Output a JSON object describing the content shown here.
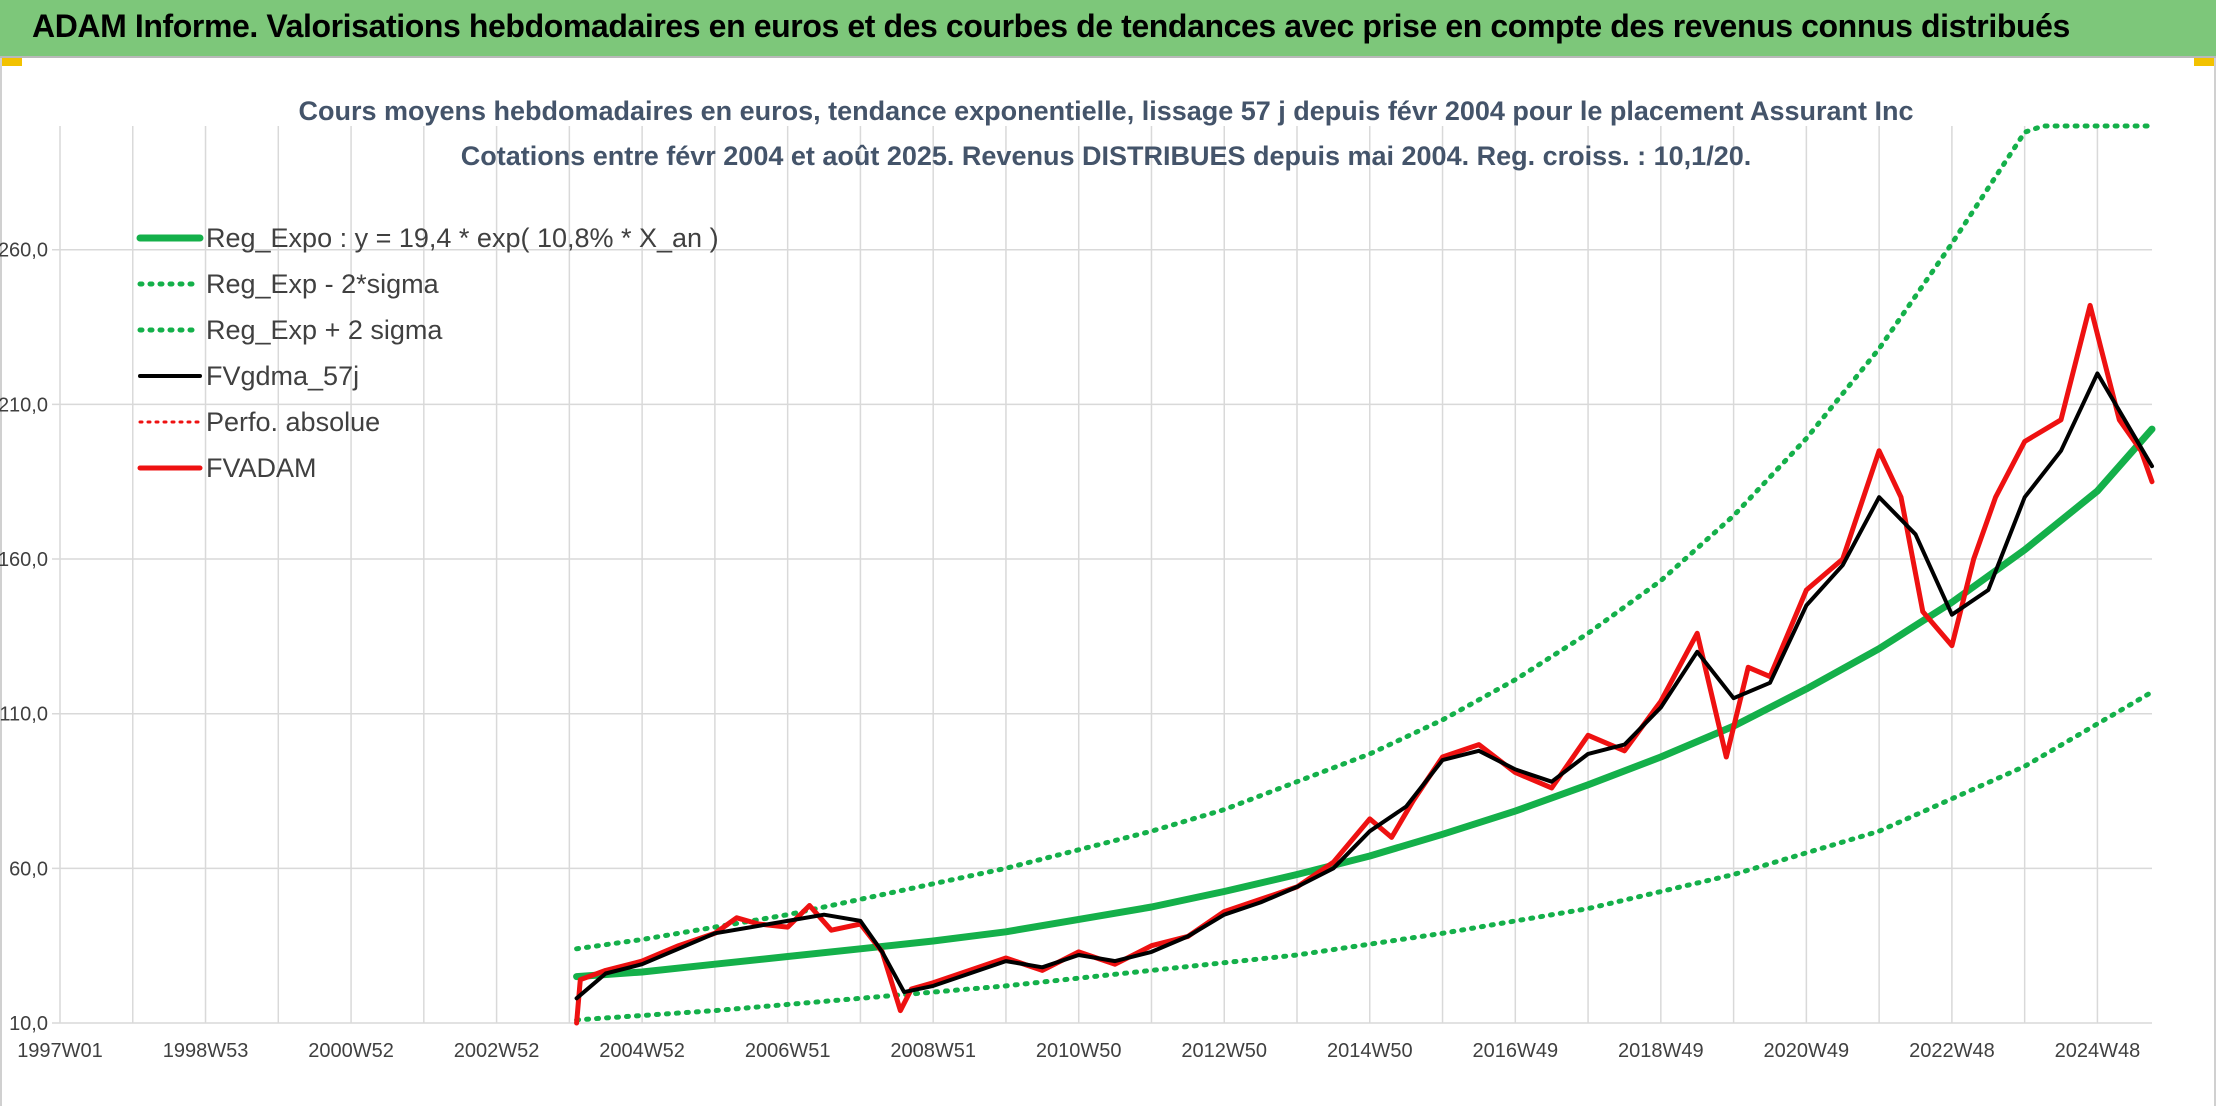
{
  "banner": {
    "title": "ADAM Informe. Valorisations hebdomadaires en euros et des courbes de tendances avec prise en compte des revenus connus distribués"
  },
  "colors": {
    "banner_bg": "#7dc77a",
    "trend_green": "#14b04a",
    "price_red": "#ee1111",
    "smooth_black": "#000000",
    "grid": "#d9d9d9",
    "title_text": "#44546a",
    "accent_yellow": "#f2c200"
  },
  "chart_data": {
    "type": "line",
    "title": "Cours moyens hebdomadaires en euros, tendance exponentielle, lissage 57 j depuis févr 2004 pour le placement Assurant Inc",
    "subtitle": "Cotations entre févr 2004 et août 2025. Revenus DISTRIBUES depuis mai 2004. Reg. croiss. : 10,1/20.",
    "x_tick_labels": [
      "1997W01",
      "1998W53",
      "2000W52",
      "2002W52",
      "2004W52",
      "2006W51",
      "2008W51",
      "2010W50",
      "2012W50",
      "2014W50",
      "2016W49",
      "2018W49",
      "2020W49",
      "2022W48",
      "2024W48"
    ],
    "y_tick_labels": [
      "10,0",
      "60,0",
      "110,0",
      "160,0",
      "210,0",
      "260,0"
    ],
    "ylim": [
      10,
      300
    ],
    "xlim": [
      1997.0,
      2025.75
    ],
    "grid": true,
    "legend_position": "top-left",
    "legend": [
      {
        "key": "reg_expo",
        "label": "Reg_Expo : y = 19,4 * exp( 10,8% *  X_an )",
        "style": "solid",
        "color": "#14b04a"
      },
      {
        "key": "reg_low",
        "label": "Reg_Exp - 2*sigma",
        "style": "dotted",
        "color": "#14b04a"
      },
      {
        "key": "reg_high",
        "label": "Reg_Exp + 2 sigma",
        "style": "dotted",
        "color": "#14b04a"
      },
      {
        "key": "fvgdma",
        "label": "FVgdma_57j",
        "style": "solid",
        "color": "#000000"
      },
      {
        "key": "perfo",
        "label": "Perfo. absolue",
        "style": "dotted",
        "color": "#ee1111"
      },
      {
        "key": "fvadam",
        "label": "FVADAM",
        "style": "solid",
        "color": "#ee1111"
      }
    ],
    "series": [
      {
        "name": "Reg_Expo : y = 19,4 * exp( 10,8% *  X_an )",
        "x": [
          2004.1,
          2005,
          2006,
          2007,
          2008,
          2009,
          2010,
          2011,
          2012,
          2013,
          2014,
          2015,
          2016,
          2017,
          2018,
          2019,
          2020,
          2021,
          2022,
          2023,
          2024,
          2025,
          2025.75
        ],
        "y": [
          25,
          26.5,
          29,
          31.5,
          34,
          36.5,
          39.5,
          43.5,
          47.5,
          52.5,
          58,
          64,
          71,
          78.5,
          87,
          96,
          106,
          118,
          131,
          146,
          163,
          182,
          202
        ]
      },
      {
        "name": "Reg_Exp - 2*sigma",
        "x": [
          2004.1,
          2006,
          2008,
          2010,
          2012,
          2014,
          2016,
          2018,
          2020,
          2022,
          2024,
          2025.75
        ],
        "y": [
          11,
          14,
          18,
          22,
          27,
          32,
          39,
          47,
          58,
          72,
          93,
          117
        ]
      },
      {
        "name": "Reg_Exp + 2 sigma",
        "x": [
          2004.1,
          2005,
          2006,
          2007,
          2008,
          2009,
          2010,
          2011,
          2012,
          2013,
          2014,
          2015,
          2016,
          2017,
          2018,
          2019,
          2020,
          2021,
          2022,
          2023,
          2024,
          2024.25,
          2025.75
        ],
        "y": [
          34,
          37,
          41,
          45,
          50,
          55,
          60,
          66,
          72,
          79,
          88,
          97,
          108,
          121,
          136,
          153,
          174,
          199,
          228,
          262,
          298,
          300,
          300
        ]
      },
      {
        "name": "FVgdma_57j",
        "x": [
          2004.1,
          2004.5,
          2005,
          2005.5,
          2006,
          2006.5,
          2007,
          2007.5,
          2008,
          2008.3,
          2008.6,
          2009,
          2009.5,
          2010,
          2010.5,
          2011,
          2011.5,
          2012,
          2012.5,
          2013,
          2013.5,
          2014,
          2014.5,
          2015,
          2015.5,
          2016,
          2016.5,
          2017,
          2017.5,
          2018,
          2018.5,
          2019,
          2019.5,
          2020,
          2020.5,
          2021,
          2021.5,
          2022,
          2022.5,
          2023,
          2023.5,
          2024,
          2024.5,
          2025,
          2025.5,
          2025.75
        ],
        "y": [
          18,
          26,
          29,
          34,
          39,
          41,
          43,
          45,
          43,
          33,
          20,
          22,
          26,
          30,
          28,
          32,
          30,
          33,
          38,
          45,
          49,
          54,
          60,
          72,
          80,
          95,
          98,
          92,
          88,
          97,
          100,
          112,
          130,
          115,
          120,
          145,
          158,
          180,
          168,
          142,
          150,
          180,
          195,
          220,
          200,
          190
        ]
      },
      {
        "name": "FVADAM",
        "x": [
          2004.1,
          2004.15,
          2004.5,
          2005,
          2005.5,
          2006,
          2006.3,
          2006.6,
          2007,
          2007.3,
          2007.6,
          2008,
          2008.3,
          2008.55,
          2008.7,
          2009,
          2009.5,
          2010,
          2010.5,
          2011,
          2011.5,
          2012,
          2012.5,
          2013,
          2013.5,
          2014,
          2014.5,
          2015,
          2015.3,
          2015.6,
          2016,
          2016.5,
          2017,
          2017.5,
          2018,
          2018.5,
          2019,
          2019.5,
          2019.9,
          2020.2,
          2020.5,
          2021,
          2021.5,
          2022,
          2022.3,
          2022.6,
          2023,
          2023.3,
          2023.6,
          2024,
          2024.5,
          2024.9,
          2025.05,
          2025.3,
          2025.6,
          2025.75
        ],
        "y": [
          10,
          24,
          27,
          30,
          35,
          39,
          44,
          42,
          41,
          48,
          40,
          42,
          33,
          14,
          21,
          23,
          27,
          31,
          27,
          33,
          29,
          35,
          38,
          46,
          50,
          54,
          62,
          76,
          70,
          82,
          96,
          100,
          91,
          86,
          103,
          98,
          114,
          136,
          96,
          125,
          122,
          150,
          160,
          195,
          180,
          143,
          132,
          160,
          180,
          198,
          205,
          242,
          228,
          205,
          195,
          185
        ]
      }
    ]
  }
}
